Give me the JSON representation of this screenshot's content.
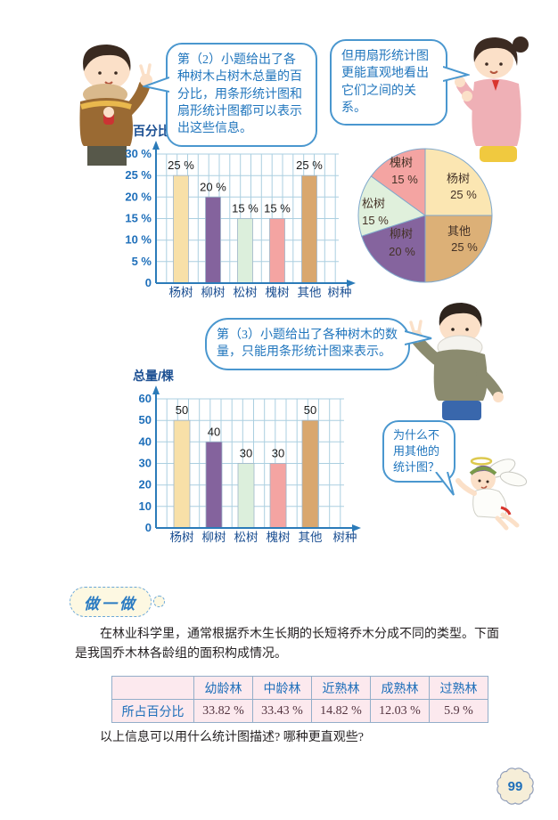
{
  "page_number": "99",
  "bubbles": {
    "boy1": "第（2）小题给出了各种树木占树木总量的百分比，用条形统计图和扇形统计图都可以表示出这些信息。",
    "girl": "但用扇形统计图更能直观地看出它们之间的关系。",
    "boy2": "第（3）小题给出了各种树木的数量，只能用条形统计图来表示。",
    "angel": "为什么不用其他的统计图？"
  },
  "doit": {
    "badge_label": "做一做",
    "paragraph": "在林业科学里，通常根据乔木生长期的长短将乔木分成不同的类型。下面是我国乔木林各龄组的面积构成情况。",
    "question": "以上信息可以用什么统计图描述? 哪种更直观些?"
  },
  "colors": {
    "accent_blue": "#2176bd",
    "axis_blue": "#2b7bb9",
    "grid_blue": "#abcfe0",
    "table_pink": "#fce9ee",
    "table_border": "#93aec9",
    "bar_yangshu": "#f8e0a8",
    "bar_liushu": "#84639d",
    "bar_songshu": "#dcefdc",
    "bar_huaishu": "#f4a4a2",
    "bar_qita": "#d9a76e"
  },
  "chart_data": [
    {
      "id": "percent-bar-chart",
      "type": "bar",
      "ylabel": "百分比",
      "xlabel": "树种",
      "categories": [
        "杨树",
        "柳树",
        "松树",
        "槐树",
        "其他"
      ],
      "values": [
        25,
        20,
        15,
        15,
        25
      ],
      "value_labels": [
        "25 %",
        "20 %",
        "15 %",
        "15 %",
        "25 %"
      ],
      "ylim": [
        0,
        30
      ],
      "ytick_step": 5,
      "ytick_labels": [
        "0",
        "5 %",
        "10 %",
        "15 %",
        "20 %",
        "25 %",
        "30 %"
      ],
      "bar_colors": [
        "#f8e0a8",
        "#84639d",
        "#dcefdc",
        "#f4a4a2",
        "#d9a76e"
      ],
      "grid": true
    },
    {
      "id": "tree-pie-chart",
      "type": "pie",
      "start_angle": "top",
      "direction": "clockwise",
      "slices": [
        {
          "label": "杨树",
          "pct": 25,
          "value_label": "25 %",
          "color": "#fbe6b2"
        },
        {
          "label": "其他",
          "pct": 25,
          "value_label": "25 %",
          "color": "#dcb077"
        },
        {
          "label": "柳树",
          "pct": 20,
          "value_label": "20 %",
          "color": "#85649e"
        },
        {
          "label": "松树",
          "pct": 15,
          "value_label": "15 %",
          "color": "#e0f0dc"
        },
        {
          "label": "槐树",
          "pct": 15,
          "value_label": "15 %",
          "color": "#f4a4a2"
        }
      ]
    },
    {
      "id": "count-bar-chart",
      "type": "bar",
      "ylabel": "总量/棵",
      "xlabel": "树种",
      "categories": [
        "杨树",
        "柳树",
        "松树",
        "槐树",
        "其他"
      ],
      "values": [
        50,
        40,
        30,
        30,
        50
      ],
      "value_labels": [
        "50",
        "40",
        "30",
        "30",
        "50"
      ],
      "ylim": [
        0,
        60
      ],
      "ytick_step": 10,
      "ytick_labels": [
        "0",
        "10",
        "20",
        "30",
        "40",
        "50",
        "60"
      ],
      "bar_colors": [
        "#f8e0a8",
        "#84639d",
        "#dcefdc",
        "#f4a4a2",
        "#d9a76e"
      ],
      "grid": true
    },
    {
      "id": "forest-age-table",
      "type": "table",
      "columns": [
        "",
        "幼龄林",
        "中龄林",
        "近熟林",
        "成熟林",
        "过熟林"
      ],
      "rows": [
        [
          "所占百分比",
          "33.82 %",
          "33.43 %",
          "14.82 %",
          "12.03 %",
          "5.9 %"
        ]
      ]
    }
  ]
}
